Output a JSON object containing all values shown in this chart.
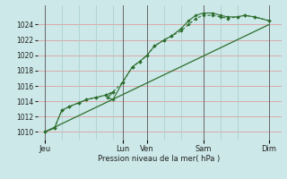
{
  "bg_color": "#cce8e8",
  "grid_color_h": "#dda0a0",
  "grid_color_v": "#aacccc",
  "line_color": "#2d6e2d",
  "ylabel": "Pression niveau de la mer( hPa )",
  "ylim": [
    1009.0,
    1026.5
  ],
  "xlim": [
    0,
    10.0
  ],
  "yticks": [
    1010,
    1012,
    1014,
    1016,
    1018,
    1020,
    1022,
    1024
  ],
  "day_labels": [
    "Jeu",
    "Lun",
    "Ven",
    "Sam",
    "Dim"
  ],
  "day_positions": [
    0.3,
    3.5,
    4.5,
    6.8,
    9.5
  ],
  "vgrid_positions": [
    0.3,
    1.0,
    1.7,
    2.4,
    3.1,
    3.5,
    4.5,
    5.2,
    5.9,
    6.8,
    7.5,
    8.2,
    9.5
  ],
  "line1_x": [
    0.3,
    0.7,
    1.0,
    1.3,
    1.7,
    2.0,
    2.4,
    2.8,
    3.1,
    2.9,
    3.1,
    3.5,
    3.9,
    4.2,
    4.5,
    4.8,
    5.2,
    5.5,
    5.9,
    6.2,
    6.5,
    6.8,
    7.2,
    7.5,
    7.8,
    8.2,
    8.5,
    8.9,
    9.5
  ],
  "line1_y": [
    1010.0,
    1010.5,
    1012.8,
    1013.3,
    1013.8,
    1014.2,
    1014.5,
    1014.8,
    1015.2,
    1014.5,
    1014.2,
    1016.5,
    1018.5,
    1019.2,
    1020.0,
    1021.2,
    1022.0,
    1022.5,
    1023.5,
    1024.5,
    1025.2,
    1025.5,
    1025.5,
    1025.2,
    1025.0,
    1025.0,
    1025.2,
    1025.0,
    1024.5
  ],
  "line2_x": [
    0.3,
    0.7,
    1.0,
    1.3,
    1.7,
    2.0,
    2.4,
    2.8,
    3.1,
    3.5,
    3.9,
    4.2,
    4.5,
    4.8,
    5.2,
    5.5,
    5.9,
    6.2,
    6.5,
    6.8,
    7.2,
    7.5,
    7.8,
    8.2,
    8.5,
    8.9,
    9.5
  ],
  "line2_y": [
    1010.0,
    1010.5,
    1012.8,
    1013.3,
    1013.8,
    1014.2,
    1014.5,
    1014.8,
    1015.2,
    1016.5,
    1018.5,
    1019.2,
    1020.0,
    1021.2,
    1022.0,
    1022.5,
    1023.2,
    1024.0,
    1024.8,
    1025.2,
    1025.2,
    1025.0,
    1024.8,
    1025.0,
    1025.2,
    1025.0,
    1024.5
  ],
  "line3_x": [
    0.3,
    9.5
  ],
  "line3_y": [
    1010.0,
    1024.0
  ]
}
